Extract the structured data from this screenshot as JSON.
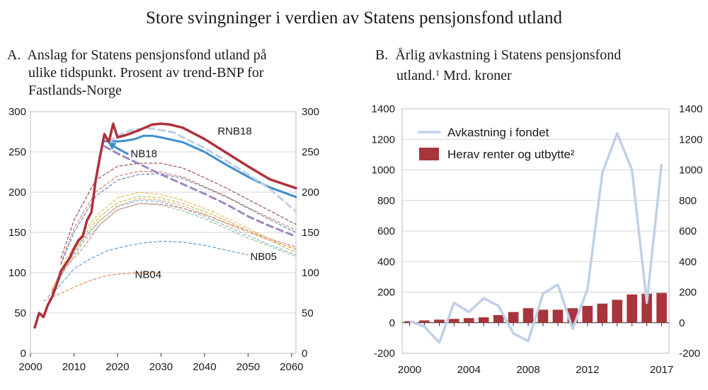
{
  "figure_title": "Store svingninger i verdien av Statens pensjonsfond utland",
  "panel_a": {
    "title_lines": [
      "A.  Anslag for Statens pensjonsfond utland på",
      "      ulike tidspunkt. Prosent av trend-BNP for",
      "      Fastlands-Norge"
    ]
  },
  "panel_b": {
    "title_line1": "B.  Årlig avkastning i Statens pensjonsfond",
    "title_line2_text": "      utland.",
    "title_line2_sup": "1",
    "title_line2_rest": " Mrd. kroner"
  },
  "chart_data": [
    {
      "type": "line",
      "panel": "A",
      "xlim": [
        2000,
        2061
      ],
      "ylim": [
        0,
        300
      ],
      "x_ticks": [
        2000,
        2010,
        2020,
        2030,
        2040,
        2050,
        2060
      ],
      "y_ticks": [
        0,
        50,
        100,
        150,
        200,
        250,
        300
      ],
      "grid": true,
      "annotations": [
        {
          "text": "RNB18",
          "x": 2043,
          "y": 276
        },
        {
          "text": "NB18",
          "x": 2023,
          "y": 248
        },
        {
          "text": "NB05",
          "x": 2050.5,
          "y": 120
        },
        {
          "text": "NB04",
          "x": 2024,
          "y": 98
        }
      ],
      "series": [
        {
          "name": "RNB18",
          "color": "#b0303a",
          "width": 3.5,
          "dash": "none",
          "x": [
            2001,
            2002,
            2003,
            2004,
            2005,
            2006,
            2007,
            2008,
            2009,
            2010,
            2011,
            2012,
            2013,
            2014,
            2015,
            2016,
            2017,
            2018,
            2019,
            2020,
            2022,
            2025,
            2028,
            2030,
            2032,
            2035,
            2040,
            2045,
            2050,
            2055,
            2061
          ],
          "y": [
            32,
            50,
            45,
            60,
            70,
            85,
            102,
            110,
            118,
            130,
            140,
            145,
            165,
            175,
            215,
            245,
            272,
            262,
            285,
            268,
            271,
            277,
            284,
            285,
            284,
            280,
            266,
            249,
            232,
            216,
            205
          ]
        },
        {
          "name": "NB18",
          "color": "#3f8fce",
          "width": 3,
          "dash": "none",
          "x": [
            2017,
            2018,
            2020,
            2022,
            2024,
            2026,
            2028,
            2030,
            2035,
            2040,
            2045,
            2050,
            2055,
            2061
          ],
          "y": [
            263,
            264,
            263,
            264,
            266,
            270,
            270,
            268,
            262,
            250,
            234,
            219,
            206,
            194
          ]
        },
        {
          "name": "",
          "color": "#bcd0e8",
          "width": 3,
          "dash": "9 6",
          "x": [
            2018,
            2020,
            2023,
            2026,
            2028,
            2030,
            2033,
            2035,
            2040,
            2045,
            2050,
            2055,
            2061
          ],
          "y": [
            262,
            270,
            277,
            279,
            279,
            277,
            274,
            268,
            255,
            239,
            222,
            204,
            176
          ]
        },
        {
          "name": "",
          "color": "#9f86c0",
          "width": 3,
          "dash": "9 6",
          "x": [
            2017,
            2020,
            2025,
            2030,
            2035,
            2040,
            2045,
            2050,
            2055,
            2061
          ],
          "y": [
            257,
            248,
            235,
            222,
            210,
            198,
            185,
            170,
            158,
            145
          ]
        },
        {
          "name": "",
          "color": "#8e2a35",
          "width": 1,
          "dash": "4 3",
          "x": [
            2007,
            2010,
            2015,
            2020,
            2025,
            2030,
            2035,
            2040,
            2045,
            2050,
            2055,
            2061
          ],
          "y": [
            118,
            165,
            215,
            232,
            236,
            236,
            230,
            218,
            205,
            191,
            177,
            160
          ]
        },
        {
          "name": "",
          "color": "#cc6a55",
          "width": 1,
          "dash": "4 3",
          "x": [
            2007,
            2010,
            2015,
            2020,
            2025,
            2030,
            2035,
            2040,
            2045,
            2050,
            2055,
            2061
          ],
          "y": [
            112,
            155,
            200,
            220,
            226,
            225,
            219,
            207,
            195,
            181,
            168,
            153
          ]
        },
        {
          "name": "",
          "color": "#4a6fb0",
          "width": 1,
          "dash": "4 3",
          "x": [
            2007,
            2010,
            2015,
            2020,
            2025,
            2030,
            2035,
            2040,
            2045,
            2050,
            2055,
            2061
          ],
          "y": [
            110,
            150,
            195,
            215,
            222,
            223,
            217,
            206,
            194,
            180,
            166,
            150
          ]
        },
        {
          "name": "",
          "color": "#e8b040",
          "width": 1,
          "dash": "4 3",
          "x": [
            2005,
            2008,
            2012,
            2016,
            2020,
            2025,
            2030,
            2035,
            2040,
            2045,
            2050,
            2055,
            2061
          ],
          "y": [
            78,
            115,
            150,
            175,
            193,
            200,
            197,
            190,
            180,
            168,
            155,
            142,
            128
          ]
        },
        {
          "name": "",
          "color": "#b0b040",
          "width": 1,
          "dash": "4 3",
          "x": [
            2005,
            2008,
            2012,
            2016,
            2020,
            2025,
            2030,
            2035,
            2040,
            2045,
            2050,
            2055,
            2061
          ],
          "y": [
            76,
            110,
            145,
            170,
            187,
            195,
            193,
            186,
            176,
            165,
            152,
            140,
            125
          ]
        },
        {
          "name": "",
          "color": "#6aa8d8",
          "width": 1,
          "dash": "4 3",
          "x": [
            2005,
            2008,
            2012,
            2016,
            2020,
            2025,
            2030,
            2035,
            2040,
            2045,
            2050,
            2055,
            2061
          ],
          "y": [
            75,
            108,
            140,
            165,
            182,
            190,
            188,
            180,
            170,
            158,
            146,
            135,
            122
          ]
        },
        {
          "name": "",
          "color": "#80b878",
          "width": 1,
          "dash": "4 3",
          "x": [
            2005,
            2008,
            2012,
            2016,
            2020,
            2025,
            2030,
            2035,
            2040,
            2045,
            2050,
            2055,
            2061
          ],
          "y": [
            74,
            105,
            137,
            160,
            178,
            186,
            184,
            177,
            167,
            155,
            143,
            133,
            120
          ]
        },
        {
          "name": "",
          "color": "#d8a050",
          "width": 1,
          "dash": "4 3",
          "x": [
            2005,
            2008,
            2012,
            2016,
            2020,
            2025,
            2030,
            2035,
            2040,
            2045,
            2050,
            2055,
            2061
          ],
          "y": [
            80,
            112,
            142,
            165,
            183,
            192,
            190,
            183,
            173,
            161,
            150,
            140,
            130
          ]
        },
        {
          "name": "",
          "color": "#d86a6a",
          "width": 1,
          "dash": "4 3",
          "x": [
            2005,
            2008,
            2012,
            2016,
            2020,
            2025,
            2030,
            2035,
            2040,
            2045,
            2050,
            2055,
            2061
          ],
          "y": [
            77,
            106,
            130,
            160,
            178,
            186,
            185,
            180,
            172,
            162,
            152,
            142,
            132
          ]
        },
        {
          "name": "NB05",
          "color": "#3f8fce",
          "width": 1,
          "dash": "4 3",
          "x": [
            2004,
            2006,
            2008,
            2010,
            2014,
            2018,
            2022,
            2026,
            2030,
            2035,
            2040,
            2045,
            2050
          ],
          "y": [
            70,
            80,
            92,
            105,
            118,
            128,
            133,
            137,
            139,
            138,
            134,
            128,
            122
          ]
        },
        {
          "name": "NB04",
          "color": "#e07840",
          "width": 1,
          "dash": "4 3",
          "x": [
            2003,
            2006,
            2010,
            2014,
            2018,
            2022,
            2025,
            2030
          ],
          "y": [
            65,
            72,
            82,
            91,
            97,
            99,
            100,
            100
          ]
        }
      ]
    },
    {
      "type": "bar+line",
      "panel": "B",
      "xlim": [
        1999.5,
        2017.5
      ],
      "ylim": [
        -200,
        1400
      ],
      "x_ticks": [
        2000,
        2004,
        2008,
        2012,
        2017
      ],
      "y_ticks": [
        -200,
        0,
        200,
        400,
        600,
        800,
        1000,
        1200,
        1400
      ],
      "grid": true,
      "legend_position": "top-left",
      "series": [
        {
          "name": "Avkastning i fondet",
          "kind": "line",
          "color": "#c0d0e8",
          "x": [
            2000,
            2001,
            2002,
            2003,
            2004,
            2005,
            2006,
            2007,
            2008,
            2009,
            2010,
            2011,
            2012,
            2013,
            2014,
            2015,
            2016,
            2017
          ],
          "values": [
            10,
            -25,
            -130,
            130,
            70,
            160,
            110,
            -70,
            -120,
            190,
            250,
            -40,
            220,
            980,
            1240,
            1000,
            130,
            1040
          ]
        },
        {
          "name": "Herav renter og utbytte²",
          "kind": "bar",
          "color": "#a8343c",
          "x": [
            2000,
            2001,
            2002,
            2003,
            2004,
            2005,
            2006,
            2007,
            2008,
            2009,
            2010,
            2011,
            2012,
            2013,
            2014,
            2015,
            2016,
            2017
          ],
          "values": [
            10,
            15,
            20,
            25,
            30,
            35,
            50,
            70,
            95,
            85,
            85,
            95,
            110,
            125,
            150,
            185,
            190,
            195
          ]
        }
      ]
    }
  ]
}
